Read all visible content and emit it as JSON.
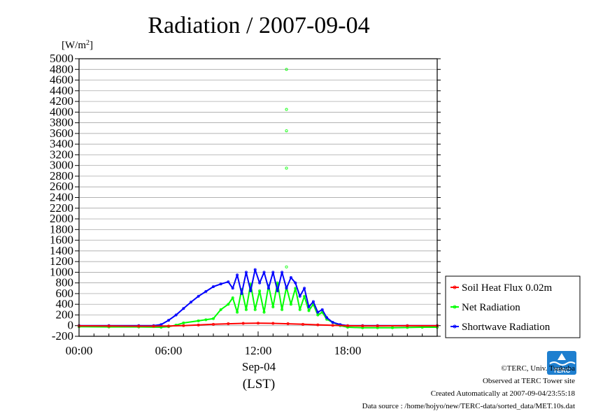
{
  "chart_data": {
    "type": "line",
    "title": "Radiation / 2007-09-04",
    "ylabel": "[W/m2]",
    "ylabel_main": "[W/m",
    "ylabel_sup": "2",
    "ylabel_end": "]",
    "xlabel_date": "Sep-04",
    "xlabel_unit": "(LST)",
    "xlim": [
      0,
      24
    ],
    "ylim": [
      -200,
      5000
    ],
    "x_ticks": [
      0,
      6,
      12,
      18
    ],
    "x_tick_labels": [
      "00:00",
      "06:00",
      "12:00",
      "18:00"
    ],
    "y_ticks": [
      -200,
      0,
      200,
      400,
      600,
      800,
      1000,
      1200,
      1400,
      1600,
      1800,
      2000,
      2200,
      2400,
      2600,
      2800,
      3000,
      3200,
      3400,
      3600,
      3800,
      4000,
      4200,
      4400,
      4600,
      4800,
      5000
    ],
    "y_tick_labels": [
      "-200",
      "0",
      "200",
      "400",
      "600",
      "800",
      "1000",
      "1200",
      "1400",
      "1600",
      "1800",
      "2000",
      "2200",
      "2400",
      "2600",
      "2800",
      "3000",
      "3200",
      "3400",
      "3600",
      "3800",
      "4000",
      "4200",
      "4400",
      "4600",
      "4800",
      "5000"
    ],
    "grid": true,
    "legend_position": "right",
    "series": [
      {
        "name": "Soil Heat Flux 0.02m",
        "color": "#ff0000",
        "x": [
          0,
          2,
          4,
          5,
          6,
          7,
          8,
          9,
          10,
          11,
          12,
          13,
          14,
          15,
          16,
          17,
          18,
          19,
          20,
          22,
          24
        ],
        "y": [
          -5,
          -8,
          -10,
          -10,
          -8,
          0,
          12,
          25,
          35,
          42,
          45,
          42,
          35,
          25,
          15,
          5,
          -2,
          -5,
          -5,
          -2,
          -2
        ]
      },
      {
        "name": "Net Radiation",
        "color": "#00ff00",
        "x": [
          0,
          2,
          4,
          5.5,
          6,
          6.5,
          7,
          8,
          8.5,
          9,
          9.5,
          10,
          10.3,
          10.6,
          10.9,
          11.2,
          11.5,
          11.8,
          12.1,
          12.4,
          12.7,
          13,
          13.3,
          13.6,
          13.9,
          14.2,
          14.5,
          14.8,
          15.1,
          15.4,
          15.7,
          16,
          16.3,
          16.6,
          17,
          17.5,
          18,
          19,
          20,
          21,
          22,
          23,
          24
        ],
        "y": [
          -20,
          -25,
          -25,
          -30,
          -20,
          10,
          50,
          90,
          110,
          130,
          300,
          400,
          520,
          250,
          680,
          300,
          780,
          300,
          650,
          250,
          750,
          350,
          800,
          300,
          720,
          400,
          700,
          300,
          550,
          280,
          400,
          200,
          250,
          120,
          60,
          0,
          -30,
          -40,
          -40,
          -40,
          -35,
          -30,
          -30
        ]
      },
      {
        "name": "Shortwave Radiation",
        "color": "#0000ff",
        "x": [
          0,
          2,
          4,
          5,
          5.5,
          6,
          6.5,
          7,
          7.5,
          8,
          8.5,
          9,
          9.5,
          10,
          10.3,
          10.6,
          10.9,
          11.2,
          11.5,
          11.8,
          12.1,
          12.4,
          12.7,
          13,
          13.3,
          13.6,
          13.9,
          14.2,
          14.5,
          14.8,
          15.1,
          15.4,
          15.7,
          16,
          16.3,
          16.6,
          17,
          17.5,
          18,
          19,
          20,
          22,
          24
        ],
        "y": [
          0,
          0,
          0,
          0,
          20,
          100,
          200,
          320,
          440,
          550,
          640,
          730,
          780,
          820,
          700,
          950,
          600,
          1000,
          650,
          1050,
          800,
          1000,
          700,
          1000,
          650,
          1000,
          700,
          900,
          800,
          550,
          700,
          350,
          450,
          250,
          300,
          150,
          60,
          20,
          0,
          0,
          0,
          0,
          0
        ]
      }
    ],
    "outliers": {
      "series": "Net Radiation",
      "x": [
        13.9,
        13.9,
        13.9,
        13.9,
        13.9
      ],
      "y": [
        4800,
        4050,
        3650,
        2950,
        1100
      ]
    }
  },
  "footer": {
    "copyright": "©TERC, Univ. Tsukuba",
    "site": "Observed at TERC Tower site",
    "created": "Created Automatically at 2007-09-04/23:55:18",
    "source": "Data source : /home/hojyo/new/TERC-data/sorted_data/MET.10s.dat"
  },
  "logo": {
    "text": "TERC",
    "color": "#1e7fcf"
  }
}
